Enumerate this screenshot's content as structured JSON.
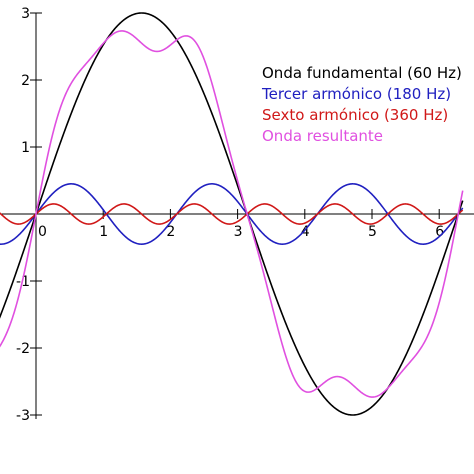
{
  "chart_data": {
    "type": "line",
    "title": "",
    "xlabel": "",
    "ylabel": "",
    "xlim": [
      -0.55,
      6.35
    ],
    "ylim": [
      -3,
      3
    ],
    "x_ticks": [
      {
        "value": 0,
        "label": "0"
      },
      {
        "value": 1,
        "label": "1"
      },
      {
        "value": 2,
        "label": "2"
      },
      {
        "value": 3,
        "label": "3"
      },
      {
        "value": 4,
        "label": "4"
      },
      {
        "value": 5,
        "label": "5"
      },
      {
        "value": 6,
        "label": "6"
      }
    ],
    "y_ticks": [
      {
        "value": 3,
        "label": "3"
      },
      {
        "value": 2,
        "label": "2"
      },
      {
        "value": 1,
        "label": "1"
      },
      {
        "value": -1,
        "label": "-1"
      },
      {
        "value": -2,
        "label": "-2"
      },
      {
        "value": -3,
        "label": "-3"
      }
    ],
    "grid": false,
    "legend_position": "right",
    "series": [
      {
        "name": "Onda fundamental (60 Hz)",
        "color": "#000000",
        "amplitude": 3,
        "harmonic": 1,
        "formula": "3·sin(x)"
      },
      {
        "name": "Tercer armónico (180 Hz)",
        "color": "#2020c0",
        "amplitude": 0.45,
        "harmonic": 3,
        "formula": "0.45·sin(3x)"
      },
      {
        "name": "Sexto armónico (360 Hz)",
        "color": "#d01818",
        "amplitude": 0.15,
        "harmonic": 6,
        "formula": "0.15·sin(6x)"
      },
      {
        "name": "Onda resultante",
        "color": "#e050e0",
        "formula": "3·sin(x) + 0.45·sin(3x) + 0.15·sin(6x)"
      }
    ]
  }
}
